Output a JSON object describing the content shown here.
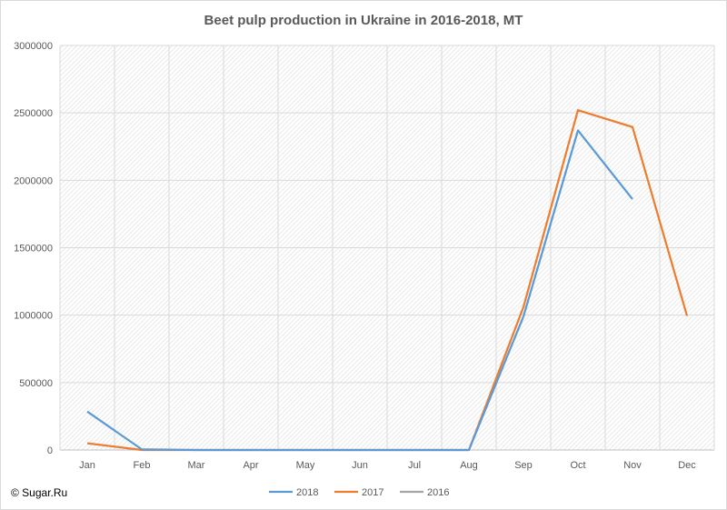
{
  "chart_data": {
    "type": "line",
    "title": "Beet pulp production in Ukraine in 2016-2018, MT",
    "xlabel": "",
    "ylabel": "",
    "categories": [
      "Jan",
      "Feb",
      "Mar",
      "Apr",
      "May",
      "Jun",
      "Jul",
      "Aug",
      "Sep",
      "Oct",
      "Nov",
      "Dec"
    ],
    "ylim": [
      0,
      3000000
    ],
    "yticks": [
      "0",
      "500000",
      "1000000",
      "1500000",
      "2000000",
      "2500000",
      "3000000"
    ],
    "grid": true,
    "legend": "bottom",
    "series": [
      {
        "name": "2018",
        "color": "#5b9bd5",
        "values": [
          285000,
          5000,
          0,
          0,
          0,
          0,
          0,
          0,
          990000,
          2370000,
          1860000,
          null
        ]
      },
      {
        "name": "2017",
        "color": "#ed7d31",
        "values": [
          50000,
          0,
          0,
          0,
          0,
          0,
          0,
          0,
          1060000,
          2520000,
          2395000,
          995000
        ]
      },
      {
        "name": "2016",
        "color": "#a5a5a5",
        "values": [
          null,
          null,
          null,
          null,
          null,
          null,
          null,
          null,
          null,
          null,
          null,
          null
        ]
      }
    ]
  },
  "copyright": "© Sugar.Ru"
}
